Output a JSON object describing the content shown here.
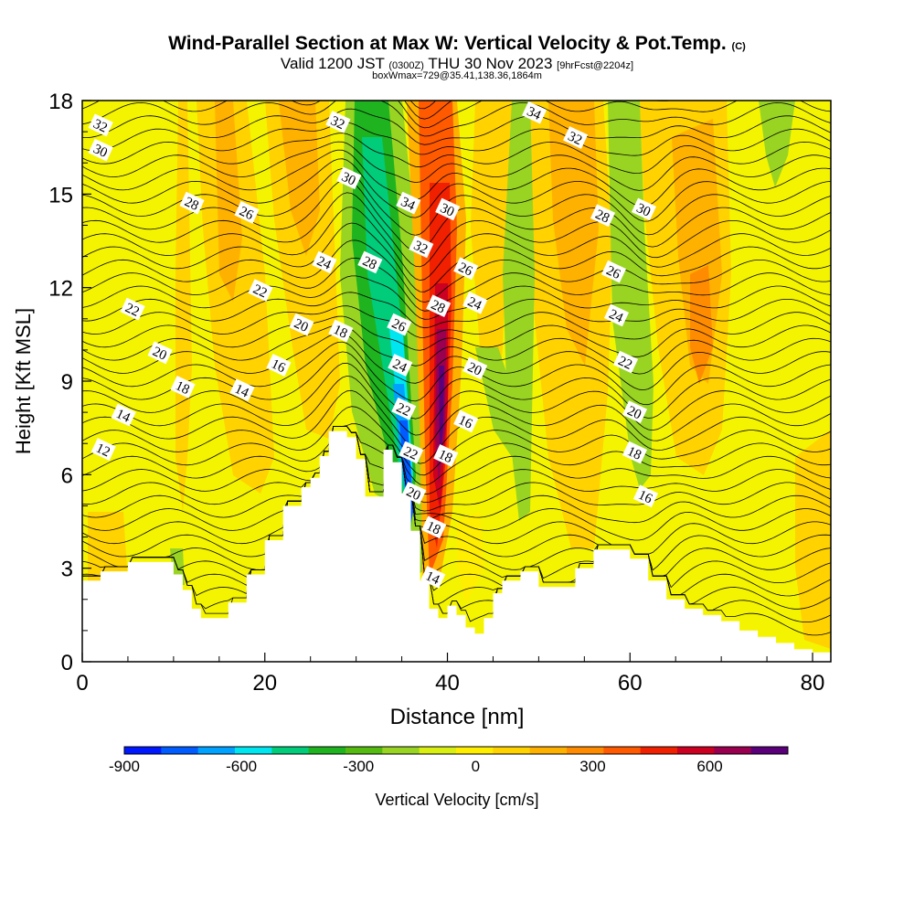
{
  "title": {
    "main": "Wind-Parallel Section at Max W: Vertical Velocity & Pot.Temp.",
    "copyright": "(C)",
    "valid_prefix": "Valid 1200 JST",
    "valid_utc": "(0300Z)",
    "valid_date": "THU 30 Nov 2023",
    "forecast": "[9hrFcst@2204z]",
    "box_info": "boxWmax=729@35.41,138.36,1864m"
  },
  "chart_data": {
    "type": "heatmap",
    "xlabel": "Distance [nm]",
    "ylabel": "Height [Kft MSL]",
    "xlim": [
      0,
      82
    ],
    "ylim": [
      0,
      18
    ],
    "x_ticks": [
      0,
      20,
      40,
      60,
      80
    ],
    "y_ticks": [
      0,
      3,
      6,
      9,
      12,
      15,
      18
    ],
    "colorbar": {
      "label": "Vertical Velocity [cm/s]",
      "min": -900,
      "max": 800,
      "step": 100,
      "tick_values": [
        -900,
        -600,
        -300,
        0,
        300,
        600
      ],
      "tick_labels": [
        "-900",
        "-600",
        "-300",
        "0",
        "300",
        "600"
      ],
      "colors": [
        "#0018ff",
        "#005cff",
        "#00a2ff",
        "#00e6f0",
        "#00cc7a",
        "#1fb31f",
        "#55bb11",
        "#99d422",
        "#d9ee11",
        "#ffee00",
        "#ffd200",
        "#ffb100",
        "#ff8c00",
        "#ff5a00",
        "#f02000",
        "#cc0020",
        "#990050",
        "#5a007a"
      ]
    },
    "terrain_height_kft": [
      [
        0,
        2.6
      ],
      [
        2,
        2.9
      ],
      [
        5,
        3.2
      ],
      [
        8,
        3.2
      ],
      [
        10,
        2.8
      ],
      [
        11,
        2.3
      ],
      [
        12,
        1.7
      ],
      [
        13,
        1.4
      ],
      [
        15,
        1.4
      ],
      [
        16,
        1.9
      ],
      [
        18,
        2.8
      ],
      [
        20,
        3.9
      ],
      [
        22,
        5.0
      ],
      [
        24,
        5.6
      ],
      [
        25,
        5.9
      ],
      [
        26,
        6.6
      ],
      [
        27,
        7.4
      ],
      [
        29,
        7.2
      ],
      [
        30,
        6.5
      ],
      [
        31,
        5.3
      ],
      [
        32,
        5.3
      ],
      [
        33,
        6.8
      ],
      [
        34,
        6.4
      ],
      [
        35,
        5.4
      ],
      [
        36,
        4.2
      ],
      [
        37,
        2.6
      ],
      [
        38,
        1.7
      ],
      [
        39,
        1.4
      ],
      [
        40,
        1.8
      ],
      [
        41,
        1.5
      ],
      [
        42,
        1.1
      ],
      [
        43,
        0.9
      ],
      [
        44,
        1.4
      ],
      [
        45,
        2.2
      ],
      [
        46,
        2.6
      ],
      [
        48,
        2.9
      ],
      [
        50,
        2.4
      ],
      [
        52,
        2.4
      ],
      [
        54,
        3.0
      ],
      [
        56,
        3.6
      ],
      [
        58,
        3.6
      ],
      [
        60,
        3.3
      ],
      [
        62,
        2.6
      ],
      [
        64,
        2.0
      ],
      [
        66,
        1.7
      ],
      [
        68,
        1.5
      ],
      [
        70,
        1.3
      ],
      [
        72,
        1.0
      ],
      [
        74,
        0.8
      ],
      [
        76,
        0.6
      ],
      [
        78,
        0.4
      ],
      [
        80,
        0.3
      ],
      [
        82,
        0.3
      ]
    ],
    "contour_labels": [
      {
        "text": "32",
        "x": 2.0,
        "y": 17.2
      },
      {
        "text": "30",
        "x": 2.0,
        "y": 16.4
      },
      {
        "text": "28",
        "x": 12.0,
        "y": 14.7
      },
      {
        "text": "26",
        "x": 18.0,
        "y": 14.4
      },
      {
        "text": "22",
        "x": 5.5,
        "y": 11.3
      },
      {
        "text": "22",
        "x": 19.5,
        "y": 11.9
      },
      {
        "text": "20",
        "x": 24.0,
        "y": 10.8
      },
      {
        "text": "20",
        "x": 8.5,
        "y": 9.9
      },
      {
        "text": "18",
        "x": 11.0,
        "y": 8.8
      },
      {
        "text": "16",
        "x": 21.5,
        "y": 9.5
      },
      {
        "text": "14",
        "x": 17.5,
        "y": 8.7
      },
      {
        "text": "14",
        "x": 4.5,
        "y": 7.9
      },
      {
        "text": "12",
        "x": 2.3,
        "y": 6.8
      },
      {
        "text": "24",
        "x": 26.5,
        "y": 12.8
      },
      {
        "text": "28",
        "x": 31.5,
        "y": 12.8
      },
      {
        "text": "18",
        "x": 28.3,
        "y": 10.6
      },
      {
        "text": "32",
        "x": 28.0,
        "y": 17.3
      },
      {
        "text": "30",
        "x": 29.2,
        "y": 15.5
      },
      {
        "text": "34",
        "x": 35.7,
        "y": 14.7
      },
      {
        "text": "32",
        "x": 37.1,
        "y": 13.3
      },
      {
        "text": "26",
        "x": 34.7,
        "y": 10.8
      },
      {
        "text": "24",
        "x": 34.8,
        "y": 9.5
      },
      {
        "text": "22",
        "x": 35.2,
        "y": 8.1
      },
      {
        "text": "22",
        "x": 36.0,
        "y": 6.7
      },
      {
        "text": "20",
        "x": 36.3,
        "y": 5.4
      },
      {
        "text": "18",
        "x": 38.5,
        "y": 4.3
      },
      {
        "text": "14",
        "x": 38.4,
        "y": 2.7
      },
      {
        "text": "30",
        "x": 40.0,
        "y": 14.5
      },
      {
        "text": "28",
        "x": 39.0,
        "y": 11.4
      },
      {
        "text": "26",
        "x": 42.0,
        "y": 12.6
      },
      {
        "text": "24",
        "x": 43.0,
        "y": 11.5
      },
      {
        "text": "20",
        "x": 43.0,
        "y": 9.4
      },
      {
        "text": "18",
        "x": 39.8,
        "y": 6.6
      },
      {
        "text": "16",
        "x": 42.0,
        "y": 7.7
      },
      {
        "text": "34",
        "x": 49.5,
        "y": 17.6
      },
      {
        "text": "32",
        "x": 54.0,
        "y": 16.8
      },
      {
        "text": "28",
        "x": 57.0,
        "y": 14.3
      },
      {
        "text": "30",
        "x": 61.5,
        "y": 14.5
      },
      {
        "text": "26",
        "x": 58.2,
        "y": 12.5
      },
      {
        "text": "24",
        "x": 58.5,
        "y": 11.1
      },
      {
        "text": "22",
        "x": 59.5,
        "y": 9.6
      },
      {
        "text": "20",
        "x": 60.5,
        "y": 8.0
      },
      {
        "text": "18",
        "x": 60.5,
        "y": 6.7
      },
      {
        "text": "16",
        "x": 61.7,
        "y": 5.3
      }
    ]
  }
}
